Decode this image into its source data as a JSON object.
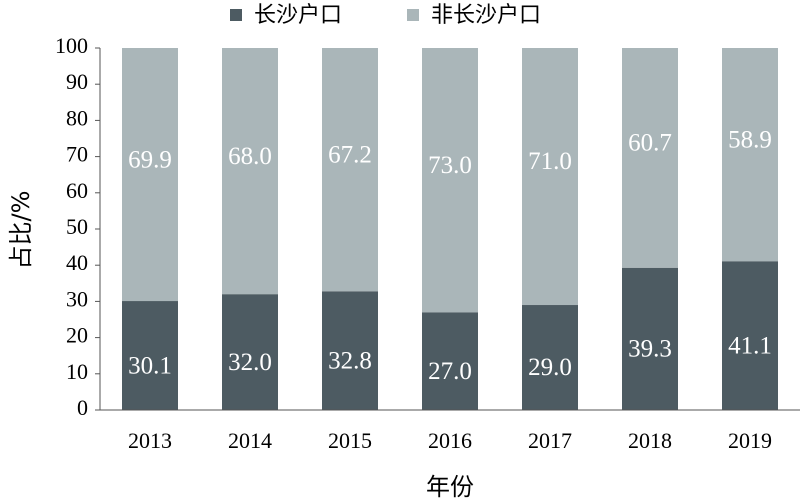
{
  "chart_data": {
    "type": "stacked-bar",
    "x_label": "年份",
    "y_label": "占比/%",
    "categories": [
      "2013",
      "2014",
      "2015",
      "2016",
      "2017",
      "2018",
      "2019"
    ],
    "series": [
      {
        "name": "长沙户口",
        "color": "#4d5b62",
        "values": [
          30.1,
          32.0,
          32.8,
          27.0,
          29.0,
          39.3,
          41.1
        ],
        "value_labels": [
          "30.1",
          "32.0",
          "32.8",
          "27.0",
          "29.0",
          "39.3",
          "41.1"
        ]
      },
      {
        "name": "非长沙户口",
        "color": "#aab6b9",
        "values": [
          69.9,
          68.0,
          67.2,
          73.0,
          71.0,
          60.7,
          58.9
        ],
        "value_labels": [
          "69.9",
          "68.0",
          "67.2",
          "73.0",
          "71.0",
          "60.7",
          "58.9"
        ]
      }
    ],
    "ylim": [
      0,
      100
    ],
    "yticks": [
      0,
      10,
      20,
      30,
      40,
      50,
      60,
      70,
      80,
      90,
      100
    ],
    "grid": false,
    "legend": "top"
  }
}
